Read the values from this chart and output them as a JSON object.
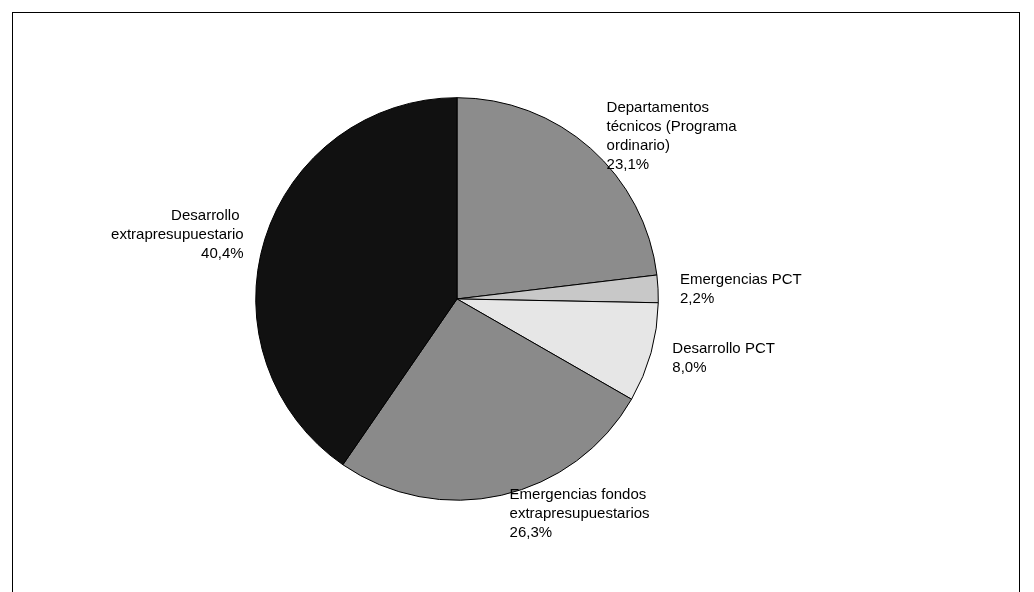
{
  "chart_data": {
    "type": "pie",
    "categories": [
      "Departamentos técnicos (Programa ordinario)",
      "Emergencias PCT",
      "Desarrollo PCT",
      "Emergencias fondos extrapresupuestarios",
      "Desarrollo extrapresupuestario"
    ],
    "values": [
      23.1,
      2.2,
      8.0,
      26.3,
      40.4
    ],
    "value_labels": [
      "23,1%",
      "2,2%",
      "8,0%",
      "26,3%",
      "40,4%"
    ],
    "colors": [
      "#8c8c8c",
      "#c8c8c8",
      "#e6e6e6",
      "#8a8a8a",
      "#111111"
    ],
    "legend": false
  }
}
